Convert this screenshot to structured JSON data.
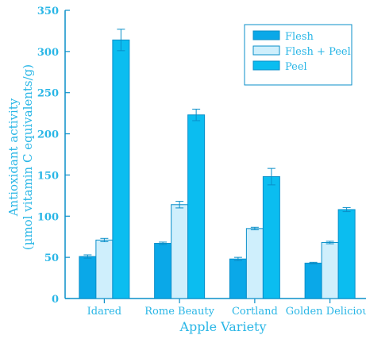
{
  "colors": {
    "text": "#29b6e6",
    "axis": "#0a8fc9",
    "flesh": "#0aa8e8",
    "flesh_peel": "#cfeffc",
    "peel": "#0bbdf0",
    "bar_stroke": "#0a8fc9"
  },
  "chart_data": {
    "type": "bar",
    "xlabel": "Apple Variety",
    "ylabel_lines": [
      "Antioxidant activity",
      "(µmol vitamin C equivalents/g)"
    ],
    "ylim": [
      0,
      350
    ],
    "yticks": [
      0,
      50,
      100,
      150,
      200,
      250,
      300,
      350
    ],
    "categories": [
      "Idared",
      "Rome Beauty",
      "Cortland",
      "Golden Delicious"
    ],
    "legend_position": "top-right",
    "series": [
      {
        "name": "Flesh",
        "color_key": "flesh",
        "values": [
          51,
          67,
          48,
          43
        ],
        "errors": [
          2,
          1.5,
          2,
          1
        ]
      },
      {
        "name": "Flesh + Peel",
        "color_key": "flesh_peel",
        "values": [
          71,
          114,
          85,
          68
        ],
        "errors": [
          2,
          4,
          1.5,
          1.5
        ]
      },
      {
        "name": "Peel",
        "color_key": "peel",
        "values": [
          314,
          223,
          148,
          108
        ],
        "errors": [
          13,
          7,
          10,
          2.5
        ]
      }
    ]
  }
}
